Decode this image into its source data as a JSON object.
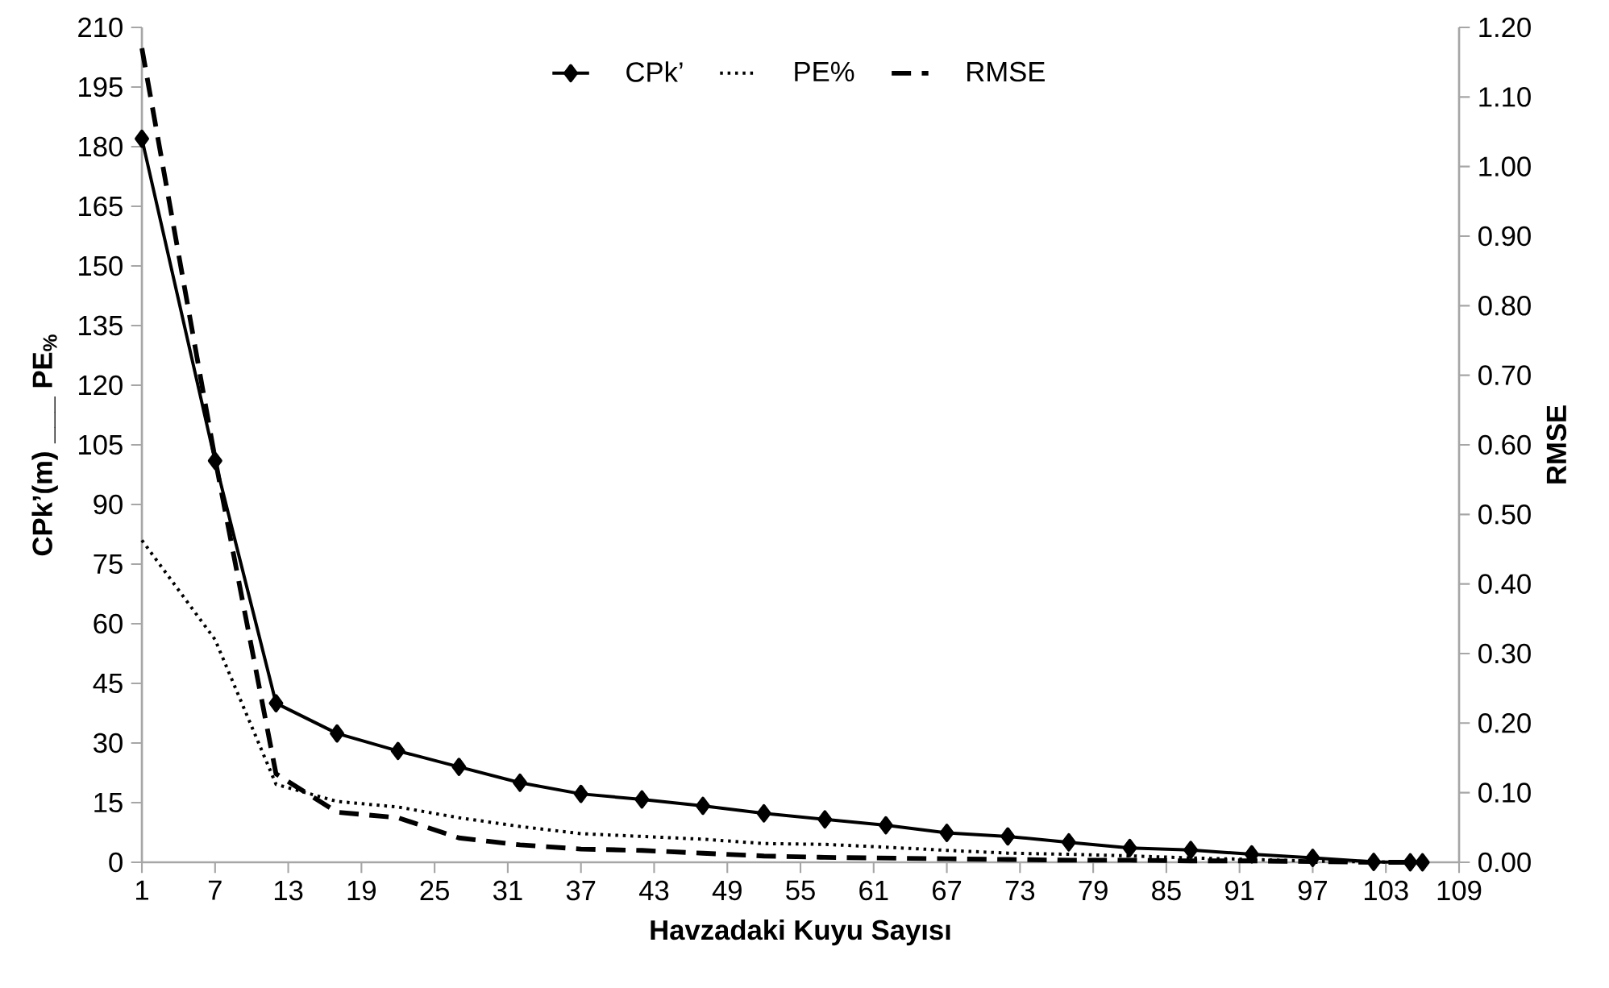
{
  "chart_data": {
    "type": "line",
    "xlabel": "Havzadaki Kuyu Sayısı",
    "ylabel": "CPk’(m) ___ PE$_{%}$",
    "y2label": "RMSE",
    "x": [
      1,
      7,
      12,
      17,
      22,
      27,
      32,
      37,
      42,
      47,
      52,
      57,
      62,
      67,
      72,
      77,
      82,
      87,
      92,
      97,
      102,
      105,
      106
    ],
    "series": [
      {
        "name": "CPk’",
        "color": "#000000",
        "marker": "diamond",
        "line_style": "solid",
        "values": [
          182,
          101,
          40,
          32.4,
          28,
          24,
          20,
          17.2,
          15.8,
          14.2,
          12.3,
          10.8,
          9.3,
          7.4,
          6.5,
          5,
          3.6,
          3.1,
          2,
          1.1,
          0.1,
          0,
          0
        ]
      },
      {
        "name": "PE%",
        "color": "#000000",
        "marker": "none",
        "line_style": "dotted",
        "values": [
          81,
          56,
          19.6,
          15.3,
          13.9,
          11.2,
          9,
          7.2,
          6.5,
          5.8,
          4.7,
          4.5,
          3.8,
          3,
          2.3,
          2,
          1.6,
          1.1,
          0.7,
          0.3,
          0.1,
          0,
          0
        ]
      },
      {
        "name": "RMSE",
        "color": "#000000",
        "marker": "none",
        "line_style": "dashed",
        "axis": "y2",
        "values": [
          1.17,
          0.58,
          0.127,
          0.072,
          0.064,
          0.035,
          0.025,
          0.019,
          0.017,
          0.013,
          0.009,
          0.007,
          0.006,
          0.005,
          0.004,
          0.003,
          0.003,
          0.002,
          0.002,
          0.001,
          0,
          0,
          0
        ]
      }
    ],
    "xlim": [
      1,
      109
    ],
    "xticks": [
      1,
      7,
      13,
      19,
      25,
      31,
      37,
      43,
      49,
      55,
      61,
      67,
      73,
      79,
      85,
      91,
      97,
      103,
      109
    ],
    "ylim": [
      0,
      210
    ],
    "yticks": [
      0,
      15,
      30,
      45,
      60,
      75,
      90,
      105,
      120,
      135,
      150,
      165,
      180,
      195,
      210
    ],
    "y2lim": [
      0,
      1.2
    ],
    "y2ticks": [
      {
        "value": 0,
        "label": "0.00"
      },
      {
        "value": 0.1,
        "label": "0.10"
      },
      {
        "value": 0.2,
        "label": "0.20"
      },
      {
        "value": 0.3,
        "label": "0.30"
      },
      {
        "value": 0.4,
        "label": "0.40"
      },
      {
        "value": 0.5,
        "label": "0.50"
      },
      {
        "value": 0.6,
        "label": "0.60"
      },
      {
        "value": 0.7,
        "label": "0.70"
      },
      {
        "value": 0.8,
        "label": "0.80"
      },
      {
        "value": 0.9,
        "label": "0.90"
      },
      {
        "value": 1,
        "label": "1.00"
      },
      {
        "value": 1.1,
        "label": "1.10"
      },
      {
        "value": 1.2,
        "label": "1.20"
      }
    ],
    "legend": "top",
    "grid": false
  }
}
